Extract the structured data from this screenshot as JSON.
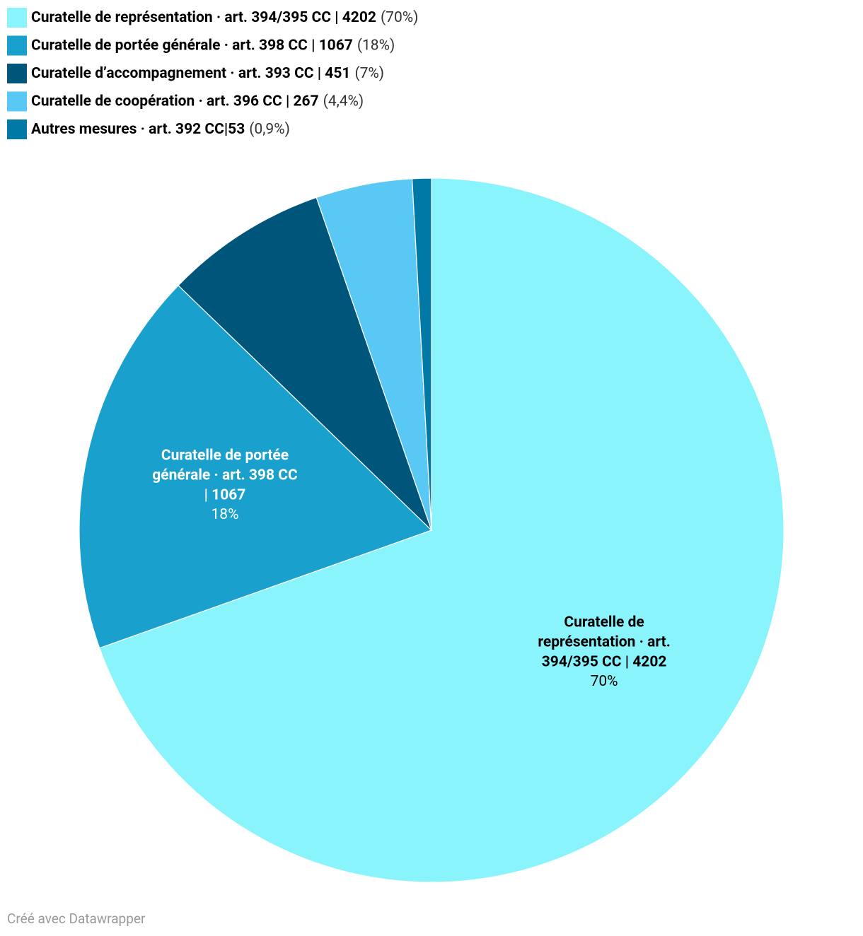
{
  "chart_data": {
    "type": "pie",
    "categories": [
      "Curatelle de représentation · art. 394/395 CC | 4202",
      "Curatelle de portée générale · art. 398 CC | 1067",
      "Curatelle d’accompagnement · art. 393 CC | 451",
      "Curatelle de coopération · art. 396 CC | 267",
      "Autres mesures · art. 392 CC|53"
    ],
    "values": [
      4202,
      1067,
      451,
      267,
      53
    ],
    "percentages": [
      70,
      18,
      7,
      4.4,
      0.9
    ],
    "percentage_labels": [
      "70%",
      "18%",
      "7%",
      "4,4%",
      "0,9%"
    ],
    "legend_percentage_labels": [
      "(70%)",
      "(18%)",
      "(7%)",
      "(4,4%)",
      "(0,9%)"
    ],
    "colors": [
      "#8af4fd",
      "#1aa0cc",
      "#00557a",
      "#5ac8f5",
      "#0079a6"
    ],
    "legend": "top-left",
    "footer": "Créé avec Datawrapper"
  }
}
